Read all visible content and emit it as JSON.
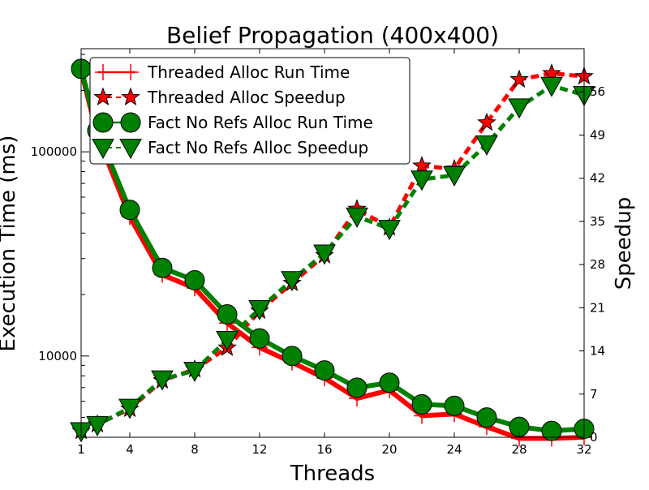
{
  "chart_data": {
    "type": "line",
    "title": "Belief Propagation (400x400)",
    "xlabel": "Threads",
    "ylabel_left": "Execution Time (ms)",
    "ylabel_right": "Speedup",
    "x_ticks": [
      1,
      4,
      8,
      12,
      16,
      20,
      24,
      28,
      32
    ],
    "xlim": [
      1,
      32
    ],
    "left_axis": {
      "scale": "log",
      "ylim": [
        4000,
        320000
      ],
      "ticks": [
        10000,
        100000
      ]
    },
    "right_axis": {
      "scale": "linear",
      "ylim": [
        0,
        63
      ],
      "ticks": [
        0,
        7,
        14,
        21,
        28,
        35,
        42,
        49,
        56
      ]
    },
    "grid": false,
    "legend": {
      "position": "top-left"
    },
    "series": [
      {
        "name": "Threaded Alloc Run Time",
        "axis": "left",
        "color": "#ff0000",
        "line_style": "solid",
        "marker": "plus",
        "x": [
          1,
          2,
          4,
          6,
          8,
          10,
          12,
          14,
          16,
          18,
          20,
          22,
          24,
          26,
          28,
          30,
          32
        ],
        "y": [
          250000,
          120000,
          48000,
          25000,
          21500,
          14500,
          11000,
          9300,
          7800,
          6200,
          6800,
          5100,
          5200,
          4500,
          3950,
          3950,
          4000
        ]
      },
      {
        "name": "Threaded Alloc Speedup",
        "axis": "right",
        "color": "#ff0000",
        "line_style": "dashed",
        "marker": "star",
        "x": [
          1,
          2,
          4,
          6,
          8,
          10,
          12,
          14,
          16,
          18,
          20,
          22,
          24,
          26,
          28,
          30,
          32
        ],
        "y": [
          1,
          2.1,
          4.6,
          9.2,
          11,
          14.5,
          20.5,
          25,
          29.5,
          37,
          34,
          44,
          43.5,
          51,
          58,
          59,
          58.5
        ]
      },
      {
        "name": "Fact No Refs Alloc Run Time",
        "axis": "left",
        "color": "#008000",
        "line_style": "solid",
        "marker": "circle",
        "x": [
          1,
          2,
          4,
          6,
          8,
          10,
          12,
          14,
          16,
          18,
          20,
          22,
          24,
          26,
          28,
          30,
          32
        ],
        "y": [
          255000,
          127000,
          52000,
          27000,
          23500,
          16000,
          12200,
          10000,
          8500,
          7000,
          7400,
          5800,
          5700,
          5000,
          4500,
          4300,
          4400
        ]
      },
      {
        "name": "Fact No Refs Alloc Speedup",
        "axis": "right",
        "color": "#008000",
        "line_style": "dashed",
        "marker": "triangle-down",
        "x": [
          1,
          2,
          4,
          6,
          8,
          10,
          12,
          14,
          16,
          18,
          20,
          22,
          24,
          26,
          28,
          30,
          32
        ],
        "y": [
          1,
          2,
          4.8,
          9.4,
          10.8,
          15.8,
          20.8,
          25.5,
          29.8,
          35.8,
          33.8,
          41.8,
          42.5,
          47.5,
          53.5,
          57,
          55.5
        ]
      }
    ]
  }
}
